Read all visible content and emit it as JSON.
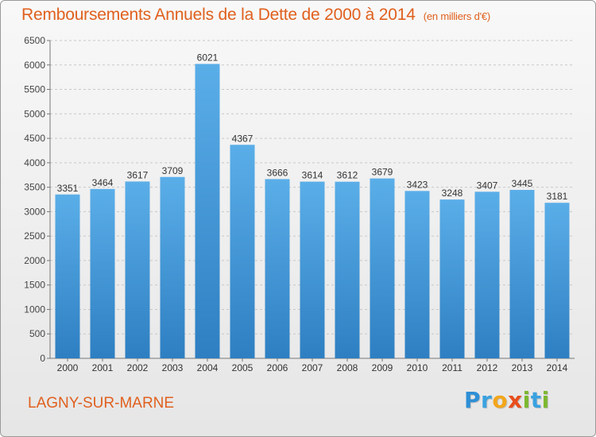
{
  "chart_data": {
    "type": "bar",
    "title": "Remboursements Annuels de la Dette de 2000 à 2014",
    "unit": "(en milliers d'€)",
    "categories": [
      "2000",
      "2001",
      "2002",
      "2003",
      "2004",
      "2005",
      "2006",
      "2007",
      "2008",
      "2009",
      "2010",
      "2011",
      "2012",
      "2013",
      "2014"
    ],
    "values": [
      3351,
      3464,
      3617,
      3709,
      6021,
      4367,
      3666,
      3614,
      3612,
      3679,
      3423,
      3248,
      3407,
      3445,
      3181
    ],
    "ylim": [
      0,
      6500
    ],
    "yticks": [
      0,
      500,
      1000,
      1500,
      2000,
      2500,
      3000,
      3500,
      4000,
      4500,
      5000,
      5500,
      6000,
      6500
    ],
    "grid": true,
    "bar_color": "#4a9ee0"
  },
  "footer": {
    "city": "LAGNY-SUR-MARNE",
    "logo_letters": [
      {
        "ch": "P",
        "color": "#2e8fd6"
      },
      {
        "ch": "r",
        "color": "#3aa2e0"
      },
      {
        "ch": "o",
        "color": "#f3a61c"
      },
      {
        "ch": "x",
        "color": "#e84e1b"
      },
      {
        "ch": "i",
        "color": "#7cb82f"
      },
      {
        "ch": "t",
        "color": "#3aa2e0"
      },
      {
        "ch": "i",
        "color": "#7cb82f"
      }
    ]
  }
}
